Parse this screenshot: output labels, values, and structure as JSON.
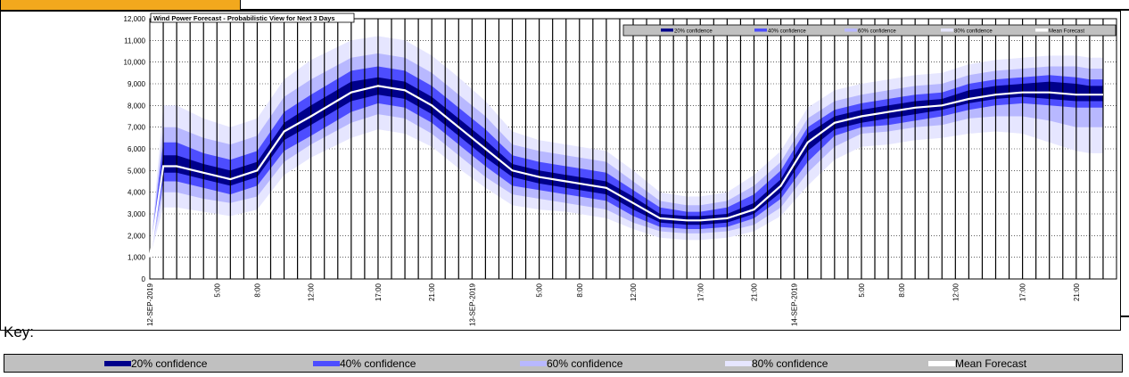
{
  "key": {
    "label": "Key:",
    "items": [
      {
        "label": "20% confidence",
        "color": "#00008b"
      },
      {
        "label": "40% confidence",
        "color": "#4d4dff"
      },
      {
        "label": "60% confidence",
        "color": "#b8b8ff"
      },
      {
        "label": "80% confidence",
        "color": "#e6e6ff"
      },
      {
        "label": "Mean Forecast",
        "color": "#ffffff"
      }
    ]
  },
  "chart_data": {
    "type": "area",
    "title": "Wind Power Forecast - Probabilistic View for Next 3 Days",
    "xlabel": "",
    "ylabel": "",
    "ylim": [
      0,
      12000
    ],
    "yticks": [
      0,
      1000,
      2000,
      3000,
      4000,
      5000,
      6000,
      7000,
      8000,
      9000,
      10000,
      11000,
      12000
    ],
    "ytick_labels": [
      "0",
      "1,000",
      "2,000",
      "3,000",
      "4,000",
      "5,000",
      "6,000",
      "7,000",
      "8,000",
      "9,000",
      "10,000",
      "11,000",
      "12,000"
    ],
    "x_hours": [
      0,
      1,
      2,
      4,
      6,
      8,
      10,
      12,
      15,
      17,
      19,
      21,
      23,
      25,
      27,
      29,
      31,
      32,
      34,
      36,
      38,
      40,
      41,
      43,
      45,
      47,
      49,
      51,
      53,
      55,
      57,
      59,
      61,
      63,
      65,
      67,
      69,
      70,
      71
    ],
    "xlim": [
      0,
      72
    ],
    "x_tick_labels": [
      {
        "hour": 0,
        "label": "12-SEP-2019"
      },
      {
        "hour": 5,
        "label": "5:00"
      },
      {
        "hour": 8,
        "label": "8:00"
      },
      {
        "hour": 12,
        "label": "12:00"
      },
      {
        "hour": 17,
        "label": "17:00"
      },
      {
        "hour": 21,
        "label": "21:00"
      },
      {
        "hour": 24,
        "label": "13-SEP-2019"
      },
      {
        "hour": 29,
        "label": "5:00"
      },
      {
        "hour": 32,
        "label": "8:00"
      },
      {
        "hour": 36,
        "label": "12:00"
      },
      {
        "hour": 41,
        "label": "17:00"
      },
      {
        "hour": 45,
        "label": "21:00"
      },
      {
        "hour": 48,
        "label": "14-SEP-2019"
      },
      {
        "hour": 53,
        "label": "5:00"
      },
      {
        "hour": 56,
        "label": "8:00"
      },
      {
        "hour": 60,
        "label": "12:00"
      },
      {
        "hour": 65,
        "label": "17:00"
      },
      {
        "hour": 69,
        "label": "21:00"
      }
    ],
    "series": [
      {
        "name": "Mean Forecast",
        "values": [
          1000,
          5200,
          5200,
          4900,
          4600,
          5000,
          6800,
          7500,
          8600,
          8900,
          8700,
          8000,
          7000,
          6000,
          5000,
          4700,
          4500,
          4400,
          4200,
          3500,
          2800,
          2700,
          2700,
          2800,
          3200,
          4300,
          6300,
          7200,
          7500,
          7700,
          7900,
          8000,
          8300,
          8500,
          8600,
          8600,
          8500,
          8500,
          8500
        ]
      },
      {
        "name": "20% confidence",
        "values_low": [
          1000,
          4900,
          4900,
          4600,
          4300,
          4700,
          6400,
          7100,
          8200,
          8500,
          8300,
          7600,
          6600,
          5600,
          4700,
          4400,
          4200,
          4100,
          3900,
          3200,
          2600,
          2500,
          2500,
          2600,
          3000,
          4000,
          5900,
          6900,
          7200,
          7400,
          7600,
          7800,
          8100,
          8300,
          8400,
          8300,
          8200,
          8200,
          8200
        ],
        "values_high": [
          1000,
          5700,
          5700,
          5300,
          5000,
          5400,
          7200,
          8000,
          9100,
          9300,
          9100,
          8400,
          7400,
          6400,
          5300,
          5000,
          4800,
          4700,
          4500,
          3800,
          3000,
          2900,
          2900,
          3000,
          3500,
          4600,
          6700,
          7500,
          7800,
          8000,
          8200,
          8300,
          8700,
          8900,
          9000,
          9100,
          9000,
          8900,
          8900
        ]
      },
      {
        "name": "40% confidence",
        "values_low": [
          1000,
          4500,
          4500,
          4200,
          3900,
          4300,
          5900,
          6600,
          7700,
          8100,
          7900,
          7200,
          6200,
          5200,
          4300,
          4100,
          3900,
          3800,
          3600,
          2900,
          2400,
          2300,
          2300,
          2400,
          2800,
          3700,
          5400,
          6600,
          7000,
          7100,
          7300,
          7500,
          7800,
          8000,
          8100,
          8000,
          7900,
          7900,
          7900
        ],
        "values_high": [
          1000,
          6300,
          6300,
          5800,
          5500,
          5900,
          7700,
          8500,
          9600,
          9800,
          9600,
          8900,
          7900,
          6900,
          5700,
          5400,
          5200,
          5100,
          4900,
          4100,
          3300,
          3100,
          3100,
          3300,
          3900,
          5000,
          7000,
          7800,
          8100,
          8300,
          8500,
          8600,
          9000,
          9200,
          9300,
          9400,
          9300,
          9200,
          9200
        ]
      },
      {
        "name": "60% confidence",
        "values_low": [
          1000,
          4000,
          4000,
          3700,
          3500,
          3800,
          5400,
          6200,
          7200,
          7600,
          7400,
          6700,
          5700,
          4700,
          3900,
          3700,
          3500,
          3400,
          3200,
          2600,
          2200,
          2100,
          2100,
          2200,
          2500,
          3300,
          4900,
          6100,
          6700,
          6800,
          7000,
          7100,
          7400,
          7500,
          7500,
          7300,
          7000,
          7000,
          7000
        ],
        "values_high": [
          1000,
          7000,
          7000,
          6500,
          6200,
          6600,
          8400,
          9200,
          10200,
          10400,
          10200,
          9500,
          8500,
          7500,
          6200,
          5900,
          5700,
          5600,
          5400,
          4500,
          3600,
          3400,
          3400,
          3600,
          4300,
          5400,
          7400,
          8200,
          8500,
          8700,
          8900,
          9000,
          9400,
          9600,
          9700,
          9800,
          9800,
          9700,
          9700
        ]
      },
      {
        "name": "80% confidence",
        "values_low": [
          1000,
          3300,
          3300,
          3100,
          2900,
          3200,
          4800,
          5600,
          6500,
          6900,
          6700,
          6100,
          5100,
          4200,
          3400,
          3200,
          3100,
          3000,
          2800,
          2300,
          1900,
          1800,
          1800,
          1900,
          2200,
          2900,
          4300,
          5500,
          6100,
          6200,
          6400,
          6500,
          6700,
          6800,
          6700,
          6300,
          5900,
          5800,
          5800
        ],
        "values_high": [
          1000,
          8000,
          8000,
          7400,
          7000,
          7400,
          9200,
          10100,
          11000,
          11200,
          11000,
          10300,
          9300,
          8200,
          6800,
          6400,
          6200,
          6100,
          5900,
          5000,
          4000,
          3800,
          3800,
          4000,
          4800,
          5900,
          7900,
          8700,
          9000,
          9200,
          9400,
          9500,
          9900,
          10100,
          10200,
          10300,
          10300,
          10200,
          10200
        ]
      }
    ],
    "legend": {
      "placement": "top-right",
      "entries": [
        "20% confidence",
        "40% confidence",
        "60% confidence",
        "80% confidence",
        "Mean Forecast"
      ]
    },
    "grid": true,
    "vertical_lines_every_hours": 1
  }
}
